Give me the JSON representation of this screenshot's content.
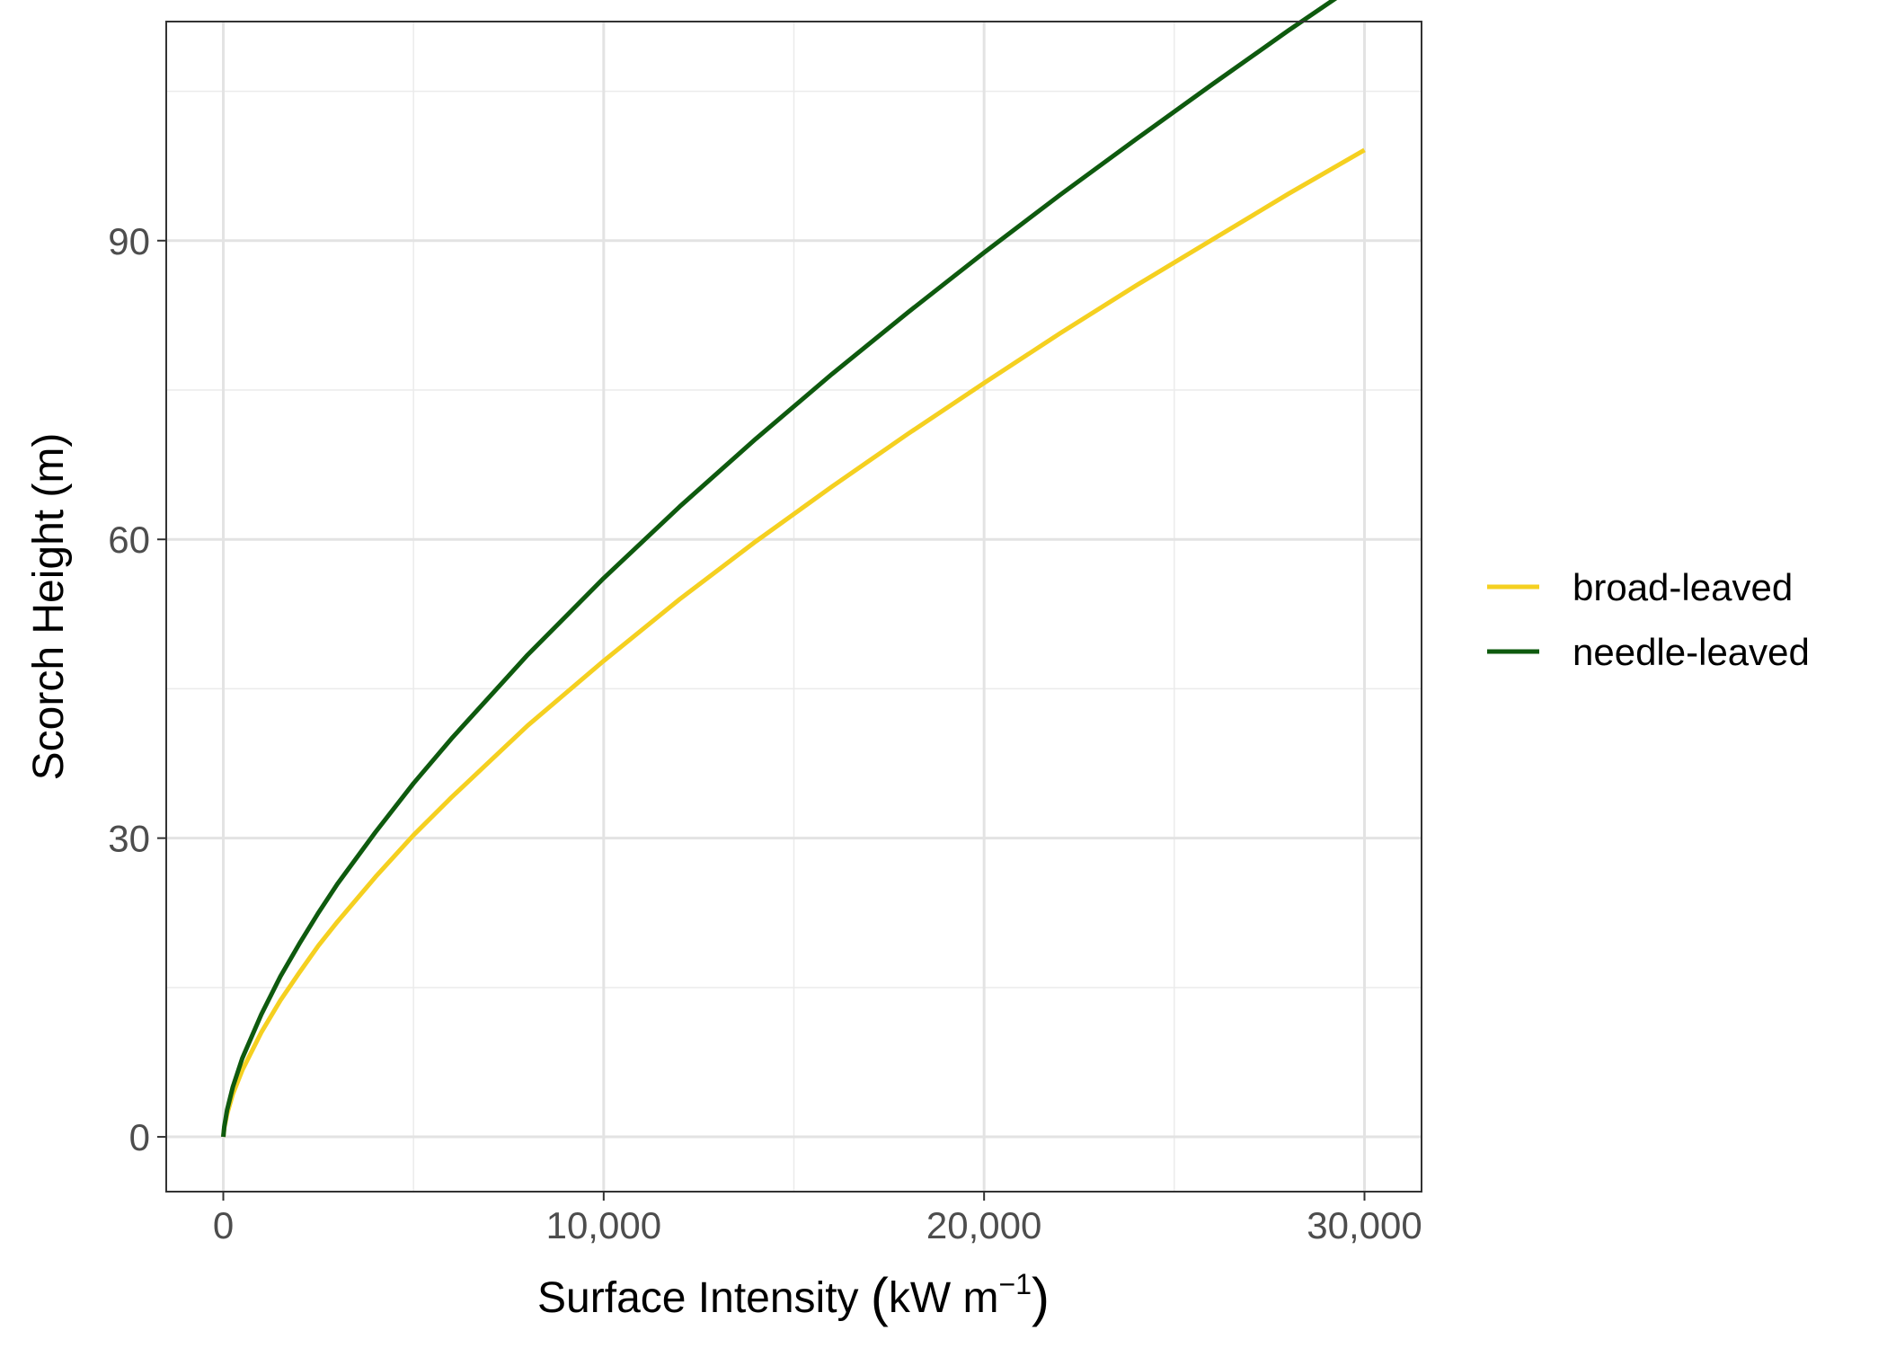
{
  "chart_data": {
    "type": "line",
    "xlabel_main": "Surface Intensity ",
    "xlabel_unit_base": "kW m",
    "xlabel_unit_exp": "−1",
    "ylabel": "Scorch Height (m)",
    "xlim": [
      -1500,
      31500
    ],
    "ylim": [
      -5.5,
      112
    ],
    "x_ticks": [
      0,
      10000,
      20000,
      30000
    ],
    "x_tick_labels": [
      "0",
      "10,000",
      "20,000",
      "30,000"
    ],
    "x_minor_ticks": [
      5000,
      15000,
      25000
    ],
    "y_ticks": [
      0,
      30,
      60,
      90
    ],
    "y_tick_labels": [
      "0",
      "30",
      "60",
      "90"
    ],
    "y_minor_ticks": [
      15,
      45,
      75,
      105
    ],
    "grid": true,
    "legend_position": "right",
    "series": [
      {
        "name": "broad-leaved",
        "color": "#f5d020",
        "x": [
          0,
          25,
          100,
          250,
          500,
          1000,
          1500,
          2000,
          2500,
          3000,
          4000,
          5000,
          6000,
          8000,
          10000,
          12000,
          14000,
          16000,
          18000,
          20000,
          22000,
          24000,
          26000,
          28000,
          30000
        ],
        "y": [
          0,
          0.9,
          2.3,
          4.3,
          6.7,
          10.5,
          13.7,
          16.5,
          19.2,
          21.6,
          26.1,
          30.3,
          34.1,
          41.3,
          47.8,
          54.0,
          59.8,
          65.3,
          70.6,
          75.7,
          80.7,
          85.5,
          90.1,
          94.7,
          99.1
        ]
      },
      {
        "name": "needle-leaved",
        "color": "#0e5a0e",
        "x": [
          0,
          25,
          100,
          250,
          500,
          1000,
          1500,
          2000,
          2500,
          3000,
          4000,
          5000,
          6000,
          8000,
          10000,
          12000,
          14000,
          16000,
          18000,
          20000,
          22000,
          24000,
          26000,
          28000,
          30000
        ],
        "y": [
          0,
          1.0,
          2.7,
          5.0,
          7.9,
          12.3,
          16.1,
          19.4,
          22.5,
          25.4,
          30.6,
          35.5,
          40.0,
          48.4,
          56.1,
          63.3,
          70.1,
          76.6,
          82.8,
          88.8,
          94.6,
          100.2,
          105.7,
          111.1,
          116.3
        ]
      }
    ]
  }
}
